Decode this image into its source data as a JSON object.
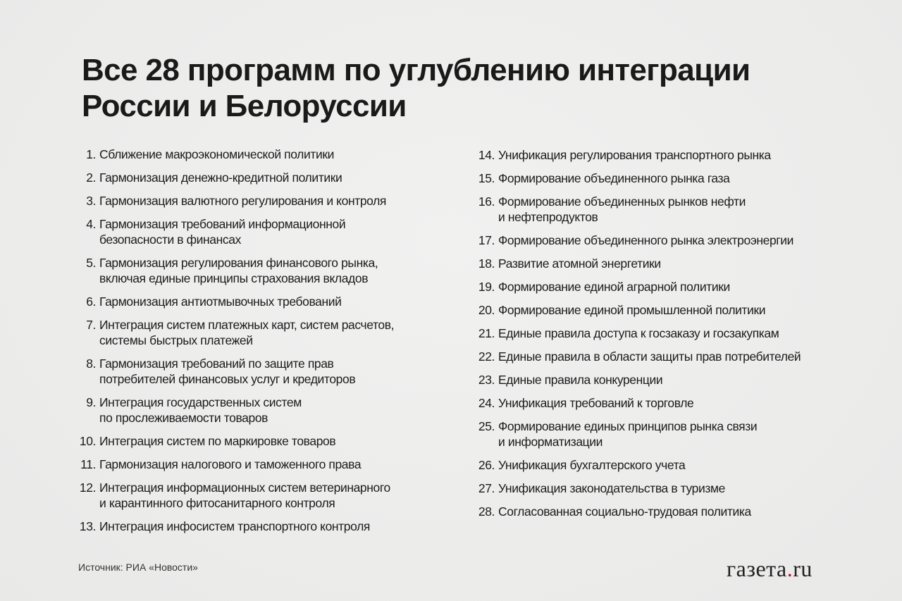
{
  "title": "Все 28 программ по углублению интеграции России и Белоруссии",
  "title_lines": [
    "Все 28 программ по углублению интеграции",
    "России и Белоруссии"
  ],
  "left_items": [
    {
      "num": "1.",
      "text": "Сближение макроэкономической политики"
    },
    {
      "num": "2.",
      "text": "Гармонизация денежно-кредитной политики"
    },
    {
      "num": "3.",
      "text": "Гармонизация валютного регулирования и контроля"
    },
    {
      "num": "4.",
      "text": "Гармонизация требований информационной безопасности в финансах"
    },
    {
      "num": "5.",
      "text": "Гармонизация регулирования финансового рынка, включая единые принципы страхования вкладов"
    },
    {
      "num": "6.",
      "text": "Гармонизация антиотмывочных требований"
    },
    {
      "num": "7.",
      "text": "Интеграция систем платежных карт, систем расчетов, системы быстрых платежей"
    },
    {
      "num": "8.",
      "text": "Гармонизация требований по защите прав потребителей финансовых услуг и кредиторов"
    },
    {
      "num": "9.",
      "text": "Интеграция государственных систем по прослеживаемости товаров"
    },
    {
      "num": "10.",
      "text": "Интеграция систем по маркировке товаров"
    },
    {
      "num": "11.",
      "text": "Гармонизация налогового и таможенного права"
    },
    {
      "num": "12.",
      "text": "Интеграция информационных систем ветеринарного и карантинного фитосанитарного контроля"
    },
    {
      "num": "13.",
      "text": "Интеграция инфосистем транспортного контроля"
    }
  ],
  "right_items": [
    {
      "num": "14.",
      "text": "Унификация регулирования транспортного рынка"
    },
    {
      "num": "15.",
      "text": "Формирование объединенного рынка газа"
    },
    {
      "num": "16.",
      "text": "Формирование объединенных рынков нефти и нефтепродуктов"
    },
    {
      "num": "17.",
      "text": "Формирование объединенного рынка электроэнергии"
    },
    {
      "num": "18.",
      "text": "Развитие атомной энергетики"
    },
    {
      "num": "19.",
      "text": "Формирование единой аграрной политики"
    },
    {
      "num": "20.",
      "text": "Формирование единой промышленной политики"
    },
    {
      "num": "21.",
      "text": "Единые правила доступа к госзаказу и госзакупкам"
    },
    {
      "num": "22.",
      "text": "Единые правила в области защиты прав потребителей"
    },
    {
      "num": "23.",
      "text": "Единые правила конкуренции"
    },
    {
      "num": "24.",
      "text": "Унификация требований к торговле"
    },
    {
      "num": "25.",
      "text": "Формирование единых принципов рынка связи и информатизации"
    },
    {
      "num": "26.",
      "text": "Унификация бухгалтерского учета"
    },
    {
      "num": "27.",
      "text": "Унификация законодательства в туризме"
    },
    {
      "num": "28.",
      "text": "Согласованная социально-трудовая политика"
    }
  ],
  "source": "Источник: РИА «Новости»",
  "logo": {
    "text": "газета.ru",
    "part1": "газета",
    "dot": ".",
    "part2": "ru",
    "accent": "#c8102e"
  }
}
